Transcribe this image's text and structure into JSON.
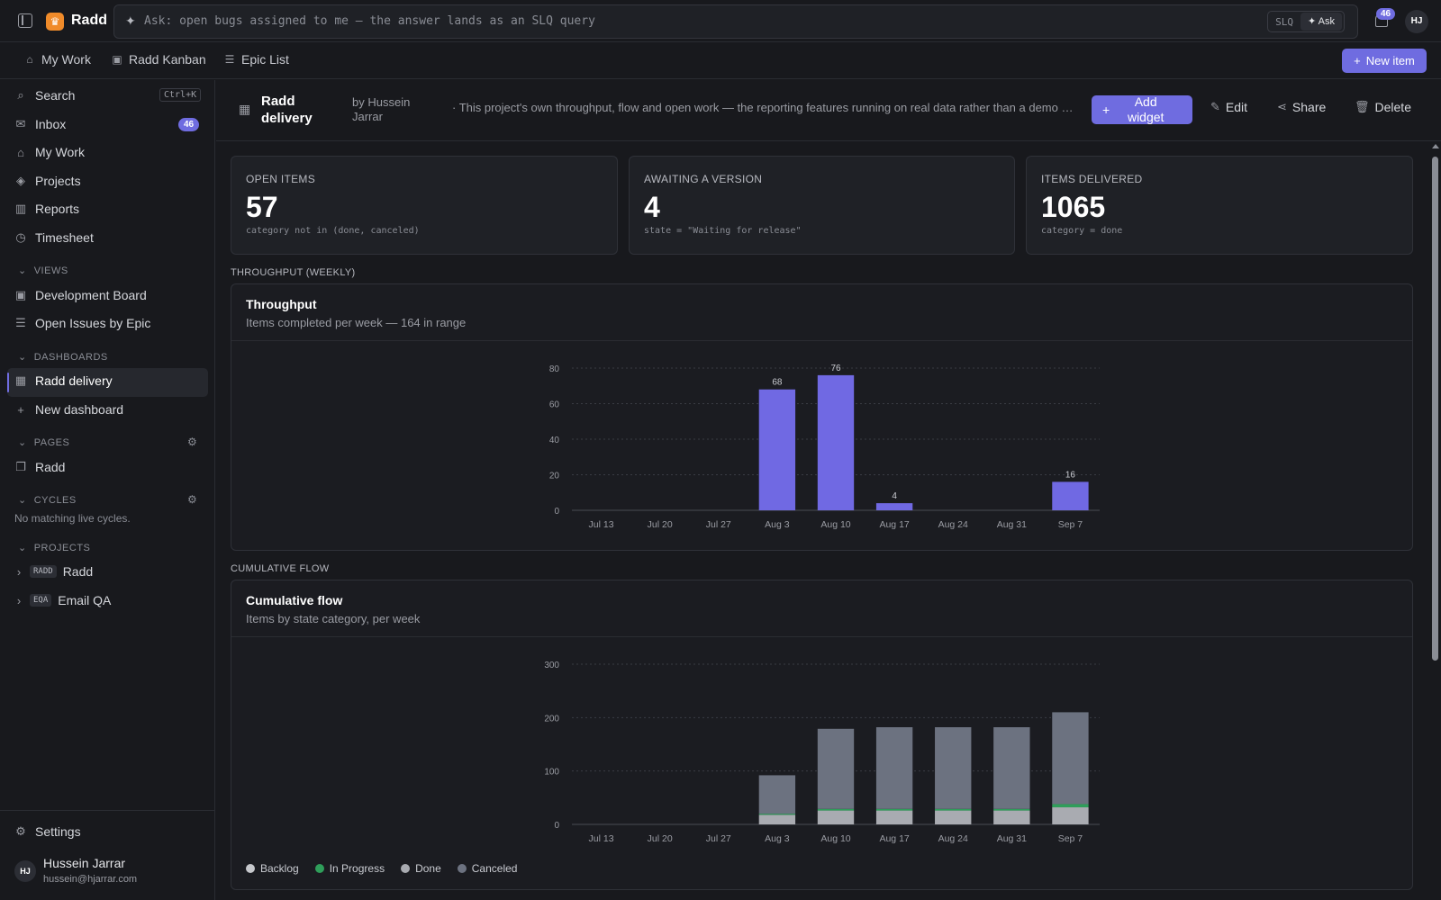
{
  "app": {
    "name": "Radd",
    "logo_icon": "crown-icon"
  },
  "ask": {
    "placeholder": "Ask: open bugs assigned to me — the answer lands as an SLQ query",
    "mode_slq": "SLQ",
    "mode_ask": "Ask"
  },
  "notifications": {
    "count": "46"
  },
  "user": {
    "initials": "HJ",
    "name": "Hussein Jarrar",
    "email": "hussein@hjarrar.com"
  },
  "nav_tabs": [
    {
      "label": "My Work",
      "icon": "home-icon"
    },
    {
      "label": "Radd Kanban",
      "icon": "board-icon"
    },
    {
      "label": "Epic List",
      "icon": "list-icon"
    }
  ],
  "new_item_label": "New item",
  "sidebar": {
    "search": "Search",
    "search_shortcut": "Ctrl+K",
    "inbox": "Inbox",
    "inbox_count": "46",
    "my_work": "My Work",
    "projects": "Projects",
    "reports": "Reports",
    "timesheet": "Timesheet",
    "views_header": "VIEWS",
    "views": [
      "Development Board",
      "Open Issues by Epic"
    ],
    "dashboards_header": "DASHBOARDS",
    "dashboards": [
      "Radd delivery"
    ],
    "new_dashboard": "New dashboard",
    "pages_header": "PAGES",
    "pages": [
      "Radd"
    ],
    "cycles_header": "CYCLES",
    "cycles_empty": "No matching live cycles.",
    "projects_header": "PROJECTS",
    "project_list": [
      {
        "tag": "RADD",
        "name": "Radd"
      },
      {
        "tag": "EQA",
        "name": "Email QA"
      }
    ],
    "settings": "Settings"
  },
  "dashboard": {
    "title": "Radd delivery",
    "by": "by Hussein Jarrar",
    "description": "· This project's own throughput, flow and open work — the reporting features running on real data rather than a demo fixture",
    "add_widget": "Add widget",
    "edit": "Edit",
    "share": "Share",
    "delete": "Delete"
  },
  "kpis": [
    {
      "label": "OPEN ITEMS",
      "value": "57",
      "query": "category not in (done, canceled)"
    },
    {
      "label": "AWAITING A VERSION",
      "value": "4",
      "query": "state = \"Waiting for release\""
    },
    {
      "label": "ITEMS DELIVERED",
      "value": "1065",
      "query": "category = done"
    }
  ],
  "sections": {
    "throughput": "THROUGHPUT (WEEKLY)",
    "cumulative": "CUMULATIVE FLOW"
  },
  "widgets": {
    "throughput_title": "Throughput",
    "throughput_subtitle": "Items completed per week — 164 in range",
    "cumulative_title": "Cumulative flow",
    "cumulative_subtitle": "Items by state category, per week"
  },
  "chart_data": [
    {
      "type": "bar",
      "categories": [
        "Jul 13",
        "Jul 20",
        "Jul 27",
        "Aug 3",
        "Aug 10",
        "Aug 17",
        "Aug 24",
        "Aug 31",
        "Sep 7"
      ],
      "values": [
        0,
        0,
        0,
        68,
        76,
        4,
        0,
        0,
        16
      ],
      "data_labels": [
        null,
        null,
        null,
        "68",
        "76",
        "4",
        null,
        null,
        "16"
      ],
      "ylim": [
        0,
        80
      ],
      "yticks": [
        0,
        20,
        40,
        60,
        80
      ],
      "grid": true,
      "color": "#7069e3"
    },
    {
      "type": "bar",
      "stacked": true,
      "categories": [
        "Jul 13",
        "Jul 20",
        "Jul 27",
        "Aug 3",
        "Aug 10",
        "Aug 17",
        "Aug 24",
        "Aug 31",
        "Sep 7"
      ],
      "series": [
        {
          "name": "Done",
          "color": "#a9abb1",
          "values": [
            0,
            0,
            0,
            18,
            26,
            26,
            26,
            26,
            32
          ]
        },
        {
          "name": "In Progress",
          "color": "#2f9e5a",
          "values": [
            0,
            0,
            0,
            2,
            3,
            3,
            3,
            3,
            6
          ]
        },
        {
          "name": "Canceled",
          "color": "#6c7280",
          "values": [
            0,
            0,
            0,
            72,
            150,
            153,
            153,
            153,
            172
          ]
        },
        {
          "name": "Backlog",
          "color": "#c6c8cc",
          "values": [
            0,
            0,
            0,
            0,
            0,
            0,
            0,
            0,
            0
          ]
        }
      ],
      "ylim": [
        0,
        300
      ],
      "yticks": [
        0,
        100,
        200,
        300
      ],
      "grid": true,
      "legend": [
        {
          "name": "Backlog",
          "color": "#c6c8cc"
        },
        {
          "name": "In Progress",
          "color": "#2f9e5a"
        },
        {
          "name": "Done",
          "color": "#a9abb1"
        },
        {
          "name": "Canceled",
          "color": "#6c7280"
        }
      ],
      "legend_position": "bottom-left"
    }
  ]
}
